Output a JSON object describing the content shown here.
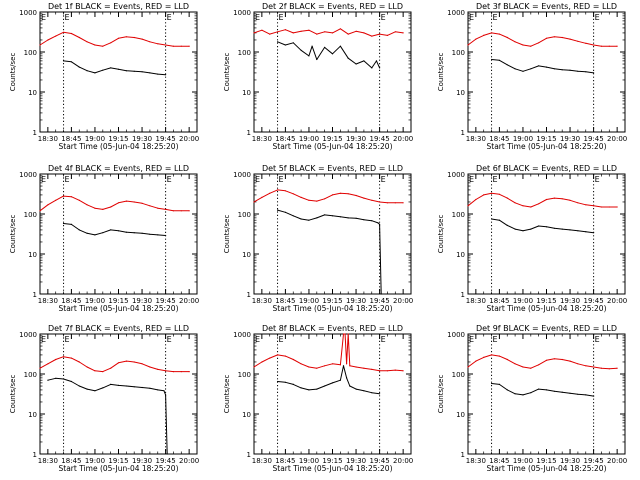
{
  "figure": {
    "xlabel": "Start Time (05-Jun-04 18:25:20)",
    "ylabel": "Counts/sec",
    "x_ticks": [
      "18:30",
      "18:45",
      "19:00",
      "19:15",
      "19:30",
      "19:45",
      "20:00"
    ],
    "x_tick_minutes": [
      30,
      45,
      60,
      75,
      90,
      105,
      120
    ],
    "x_range_minutes": [
      25,
      125
    ],
    "y_ticks": [
      "1",
      "10",
      "100",
      "1000"
    ],
    "y_tick_values": [
      1,
      10,
      100,
      1000
    ],
    "y_range": [
      1,
      1000
    ],
    "y_scale": "log",
    "marker_label": "E",
    "marker_minutes": [
      40,
      105
    ],
    "colors": {
      "events": "#000000",
      "lld": "#e00000",
      "axis": "#000000"
    }
  },
  "chart_data": [
    {
      "type": "line",
      "title": "Det 1f BLACK = Events, RED = LLD",
      "series": [
        {
          "name": "Events",
          "color": "#000000",
          "x": [
            40,
            45,
            50,
            55,
            60,
            65,
            70,
            75,
            80,
            85,
            90,
            95,
            100,
            105
          ],
          "y": [
            60,
            57,
            42,
            34,
            30,
            35,
            40,
            37,
            34,
            33,
            32,
            30,
            28,
            27
          ]
        },
        {
          "name": "LLD",
          "color": "#e00000",
          "x": [
            25,
            30,
            35,
            40,
            45,
            50,
            55,
            60,
            65,
            70,
            75,
            80,
            85,
            90,
            95,
            100,
            105,
            110,
            115,
            120
          ],
          "y": [
            150,
            200,
            250,
            310,
            290,
            230,
            180,
            150,
            140,
            170,
            220,
            240,
            230,
            210,
            180,
            160,
            150,
            140,
            140,
            140
          ]
        }
      ]
    },
    {
      "type": "line",
      "title": "Det 2f BLACK = Events, RED = LLD",
      "series": [
        {
          "name": "Events",
          "color": "#000000",
          "x": [
            40,
            45,
            50,
            55,
            60,
            62,
            65,
            70,
            75,
            80,
            85,
            90,
            95,
            100,
            103,
            105
          ],
          "y": [
            180,
            150,
            170,
            110,
            80,
            140,
            65,
            130,
            90,
            140,
            70,
            50,
            60,
            40,
            60,
            40
          ]
        },
        {
          "name": "LLD",
          "color": "#e00000",
          "x": [
            25,
            30,
            35,
            40,
            45,
            50,
            55,
            60,
            65,
            70,
            75,
            80,
            85,
            90,
            95,
            100,
            105,
            110,
            115,
            120
          ],
          "y": [
            300,
            350,
            280,
            320,
            360,
            300,
            330,
            350,
            280,
            320,
            300,
            380,
            280,
            330,
            300,
            250,
            280,
            260,
            320,
            300
          ]
        }
      ]
    },
    {
      "type": "line",
      "title": "Det 3f BLACK = Events, RED = LLD",
      "series": [
        {
          "name": "Events",
          "color": "#000000",
          "x": [
            40,
            45,
            50,
            55,
            60,
            65,
            70,
            75,
            80,
            85,
            90,
            95,
            100,
            105
          ],
          "y": [
            65,
            62,
            48,
            38,
            33,
            38,
            45,
            42,
            38,
            36,
            35,
            33,
            32,
            30
          ]
        },
        {
          "name": "LLD",
          "color": "#e00000",
          "x": [
            25,
            30,
            35,
            40,
            45,
            50,
            55,
            60,
            65,
            70,
            75,
            80,
            85,
            90,
            95,
            100,
            105,
            110,
            115,
            120
          ],
          "y": [
            150,
            210,
            260,
            300,
            280,
            230,
            180,
            150,
            140,
            170,
            220,
            240,
            230,
            210,
            185,
            165,
            150,
            140,
            140,
            140
          ]
        }
      ]
    },
    {
      "type": "line",
      "title": "Det 4f BLACK = Events, RED = LLD",
      "series": [
        {
          "name": "Events",
          "color": "#000000",
          "x": [
            40,
            45,
            50,
            55,
            60,
            65,
            70,
            75,
            80,
            85,
            90,
            95,
            100,
            105
          ],
          "y": [
            58,
            55,
            40,
            33,
            30,
            34,
            40,
            38,
            35,
            34,
            33,
            31,
            30,
            29
          ]
        },
        {
          "name": "LLD",
          "color": "#e00000",
          "x": [
            25,
            30,
            35,
            40,
            45,
            50,
            55,
            60,
            65,
            70,
            75,
            80,
            85,
            90,
            95,
            100,
            105,
            110,
            115,
            120
          ],
          "y": [
            120,
            170,
            220,
            280,
            270,
            220,
            170,
            140,
            130,
            150,
            190,
            210,
            200,
            185,
            160,
            140,
            130,
            120,
            120,
            120
          ]
        }
      ]
    },
    {
      "type": "line",
      "title": "Det 5f BLACK = Events, RED = LLD",
      "series": [
        {
          "name": "Events",
          "color": "#000000",
          "x": [
            40,
            45,
            50,
            55,
            60,
            65,
            70,
            75,
            80,
            85,
            90,
            95,
            100,
            104,
            105,
            106
          ],
          "y": [
            125,
            110,
            90,
            75,
            70,
            80,
            95,
            90,
            85,
            80,
            78,
            72,
            68,
            60,
            55,
            1
          ]
        },
        {
          "name": "LLD",
          "color": "#e00000",
          "x": [
            25,
            30,
            35,
            40,
            45,
            50,
            55,
            60,
            65,
            70,
            75,
            80,
            85,
            90,
            95,
            100,
            105,
            110,
            115,
            120
          ],
          "y": [
            200,
            260,
            330,
            400,
            380,
            320,
            260,
            220,
            210,
            240,
            300,
            330,
            320,
            290,
            250,
            220,
            200,
            190,
            190,
            190
          ]
        }
      ]
    },
    {
      "type": "line",
      "title": "Det 6f BLACK = Events, RED = LLD",
      "series": [
        {
          "name": "Events",
          "color": "#000000",
          "x": [
            40,
            45,
            50,
            55,
            60,
            65,
            70,
            75,
            80,
            85,
            90,
            95,
            100,
            105
          ],
          "y": [
            75,
            70,
            52,
            42,
            38,
            42,
            50,
            48,
            44,
            42,
            40,
            38,
            36,
            34
          ]
        },
        {
          "name": "LLD",
          "color": "#e00000",
          "x": [
            25,
            30,
            35,
            40,
            45,
            50,
            55,
            60,
            65,
            70,
            75,
            80,
            85,
            90,
            95,
            100,
            105,
            110,
            115,
            120
          ],
          "y": [
            160,
            230,
            300,
            330,
            310,
            250,
            190,
            160,
            150,
            180,
            230,
            250,
            240,
            220,
            190,
            170,
            160,
            150,
            150,
            150
          ]
        }
      ]
    },
    {
      "type": "line",
      "title": "Det 7f BLACK = Events, RED = LLD",
      "series": [
        {
          "name": "Events",
          "color": "#000000",
          "x": [
            30,
            35,
            40,
            45,
            50,
            55,
            60,
            65,
            70,
            75,
            80,
            85,
            90,
            95,
            100,
            104,
            105,
            106
          ],
          "y": [
            70,
            78,
            75,
            65,
            50,
            42,
            38,
            45,
            55,
            52,
            50,
            48,
            46,
            44,
            40,
            38,
            30,
            1
          ]
        },
        {
          "name": "LLD",
          "color": "#e00000",
          "x": [
            25,
            30,
            35,
            40,
            45,
            50,
            55,
            60,
            65,
            70,
            75,
            80,
            85,
            90,
            95,
            100,
            105,
            110,
            115,
            120
          ],
          "y": [
            140,
            180,
            230,
            270,
            250,
            200,
            150,
            120,
            115,
            140,
            190,
            210,
            200,
            180,
            150,
            130,
            120,
            115,
            115,
            115
          ]
        }
      ]
    },
    {
      "type": "line",
      "title": "Det 8f BLACK = Events, RED = LLD",
      "series": [
        {
          "name": "Events",
          "color": "#000000",
          "x": [
            40,
            45,
            50,
            55,
            60,
            65,
            70,
            75,
            80,
            82,
            84,
            86,
            90,
            95,
            100,
            105
          ],
          "y": [
            65,
            62,
            55,
            45,
            40,
            42,
            50,
            60,
            70,
            160,
            80,
            50,
            42,
            38,
            34,
            32
          ]
        },
        {
          "name": "LLD",
          "color": "#e00000",
          "x": [
            25,
            30,
            35,
            40,
            45,
            50,
            55,
            60,
            65,
            70,
            75,
            80,
            82,
            83,
            84,
            85,
            86,
            90,
            95,
            100,
            105,
            110,
            115,
            120
          ],
          "y": [
            150,
            200,
            250,
            300,
            280,
            230,
            180,
            150,
            140,
            160,
            180,
            170,
            1000,
            1000,
            180,
            1000,
            160,
            150,
            140,
            130,
            120,
            120,
            125,
            120
          ]
        }
      ]
    },
    {
      "type": "line",
      "title": "Det 9f BLACK = Events, RED = LLD",
      "series": [
        {
          "name": "Events",
          "color": "#000000",
          "x": [
            40,
            45,
            50,
            55,
            60,
            65,
            70,
            75,
            80,
            85,
            90,
            95,
            100,
            105
          ],
          "y": [
            58,
            55,
            40,
            32,
            30,
            34,
            42,
            40,
            37,
            35,
            33,
            31,
            30,
            28
          ]
        },
        {
          "name": "LLD",
          "color": "#e00000",
          "x": [
            25,
            30,
            35,
            40,
            45,
            50,
            55,
            60,
            65,
            70,
            75,
            80,
            85,
            90,
            95,
            100,
            105,
            110,
            115,
            120
          ],
          "y": [
            150,
            210,
            260,
            300,
            280,
            230,
            180,
            150,
            140,
            170,
            220,
            240,
            230,
            210,
            180,
            160,
            150,
            140,
            135,
            140
          ]
        }
      ]
    }
  ]
}
